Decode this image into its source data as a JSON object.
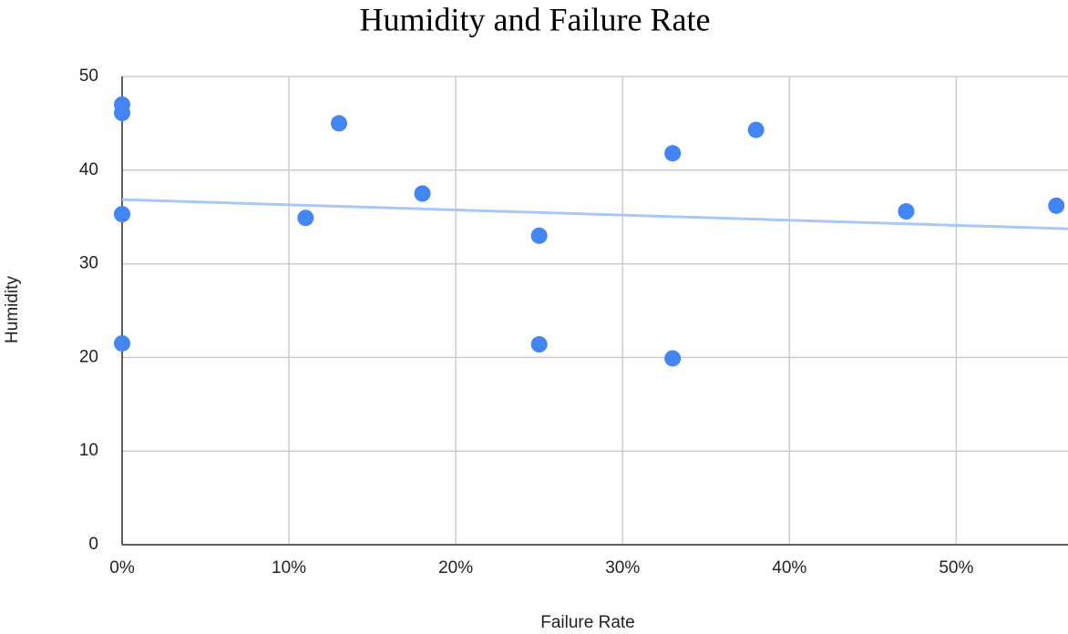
{
  "chart_data": {
    "type": "scatter",
    "title": "Humidity and Failure Rate",
    "x_label": "Failure Rate",
    "y_label": "Humidity",
    "series": [
      {
        "name": "Humidity",
        "color": "#4285f4",
        "x": [
          0,
          0,
          0,
          0,
          11,
          13,
          18,
          25,
          25,
          33,
          33,
          38,
          47,
          56
        ],
        "values": [
          47.0,
          46.1,
          35.3,
          21.5,
          34.9,
          45.0,
          37.5,
          33.0,
          21.4,
          41.8,
          19.9,
          44.3,
          35.6,
          36.2
        ]
      }
    ],
    "xlim": [
      0,
      56.7
    ],
    "ylim": [
      0,
      50
    ],
    "xticks": [
      {
        "value": 0,
        "label": "0%"
      },
      {
        "value": 10,
        "label": "10%"
      },
      {
        "value": 20,
        "label": "20%"
      },
      {
        "value": 30,
        "label": "30%"
      },
      {
        "value": 40,
        "label": "40%"
      },
      {
        "value": 50,
        "label": "50%"
      }
    ],
    "yticks": [
      0,
      10,
      20,
      30,
      40,
      50
    ],
    "grid": true,
    "trendline": true,
    "trendline_color": "#a9c8f5"
  }
}
